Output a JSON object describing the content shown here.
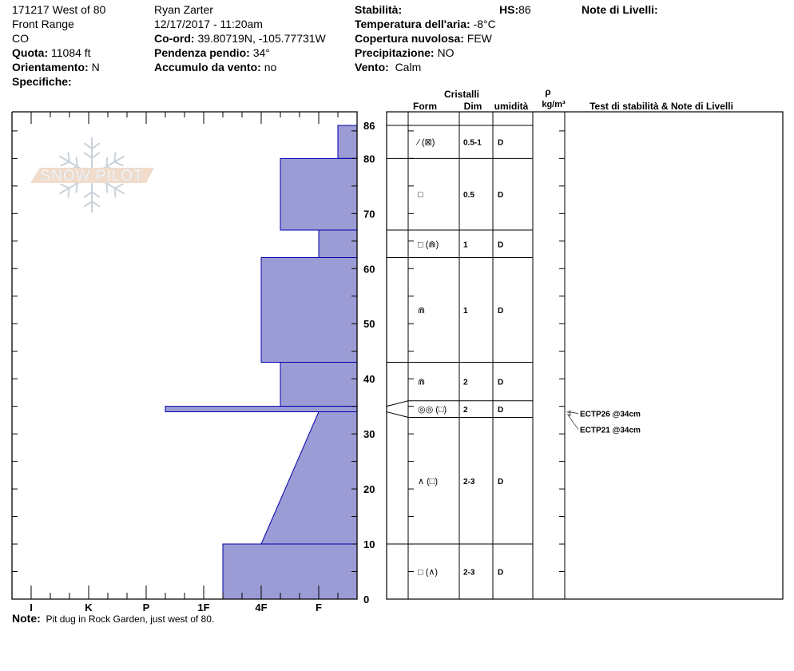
{
  "header": {
    "col1": {
      "site": "171217 West of 80",
      "range": "Front Range",
      "state": "CO",
      "quota_label": "Quota:",
      "quota": "11084 ft",
      "orient_label": "Orientamento:",
      "orient": "N",
      "spec_label": "Specifiche:"
    },
    "col2": {
      "observer": "Ryan Zarter",
      "datetime": "12/17/2017 - 11:20am",
      "coord_label": "Co-ord:",
      "coord": "39.80719N, -105.77731W",
      "slope_label": "Pendenza pendio:",
      "slope": "34°",
      "wind_load_label": "Accumulo da vento:",
      "wind_load": "no"
    },
    "col3": {
      "stab_label": "Stabilità:",
      "hs_label": "HS:",
      "hs": "86",
      "temp_label": "Temperatura dell'aria:",
      "temp": "-8°C",
      "sky_label": "Copertura nuvolosa:",
      "sky": "FEW",
      "precip_label": "Precipitazione:",
      "precip": "NO",
      "wind_label": "Vento:",
      "wind": "Calm"
    },
    "layer_notes_label": "Note di Livelli:"
  },
  "logo_text": "SNOW PILOT",
  "table_headers": {
    "cristalli": "Cristalli",
    "form": "Form",
    "dim": "Dim",
    "umidita": "umidità",
    "rho": "ρ",
    "density_unit": "kg/m³",
    "tests": "Test di stabilità & Note di Livelli"
  },
  "note": {
    "label": "Note:",
    "text": "Pit dug in Rock Garden, just west of 80."
  },
  "colors": {
    "layer_fill": "#9b9bd5",
    "layer_stroke": "#0000aa",
    "logo_band": "#f0d9c6",
    "logo_flake": "#c4ced6"
  },
  "chart_data": {
    "type": "snow-profile",
    "y_axis": {
      "unit": "cm",
      "range": [
        0,
        86
      ],
      "ticks": [
        0,
        10,
        20,
        30,
        40,
        50,
        60,
        70,
        80,
        86
      ]
    },
    "x_axis": {
      "type": "hand hardness",
      "ticks": [
        "I",
        "K",
        "P",
        "1F",
        "4F",
        "F"
      ],
      "direction": "hardness increases leftward"
    },
    "layers": [
      {
        "top": 86,
        "bottom": 80,
        "hardness": "F-",
        "form": "⁄ (⊠)",
        "size": "0.5-1",
        "moisture": "D"
      },
      {
        "top": 80,
        "bottom": 67,
        "hardness": "4F-",
        "form": "□",
        "size": "0.5",
        "moisture": "D"
      },
      {
        "top": 67,
        "bottom": 62,
        "hardness": "F",
        "form": "□ (⋒)",
        "size": "1",
        "moisture": "D"
      },
      {
        "top": 62,
        "bottom": 43,
        "hardness": "4F",
        "form": "⋒",
        "size": "1",
        "moisture": "D"
      },
      {
        "top": 43,
        "bottom": 35,
        "hardness": "4F-",
        "form": "⋒",
        "size": "2",
        "moisture": "D"
      },
      {
        "top": 35,
        "bottom": 34,
        "hardness": "P-",
        "form": "◎◎ (□)",
        "size": "2",
        "moisture": "D"
      },
      {
        "top": 34,
        "bottom": 10,
        "hardness": "F",
        "hardness_bottom": "4F",
        "form": "∧ (□)",
        "size": "2-3",
        "moisture": "D"
      },
      {
        "top": 10,
        "bottom": 0,
        "hardness": "1F-",
        "form": "□ (∧)",
        "size": "2-3",
        "moisture": "D"
      }
    ],
    "stability_tests": [
      {
        "label": "ECTP26 @34cm",
        "depth": 34
      },
      {
        "label": "ECTP21 @34cm",
        "depth": 34
      }
    ]
  }
}
